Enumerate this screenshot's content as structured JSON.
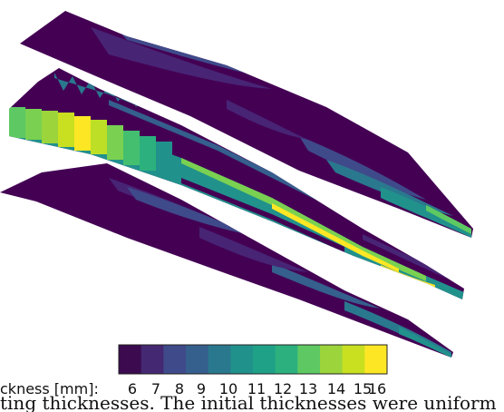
{
  "colorbar": {
    "label": "ckness [mm]:",
    "ticks": [
      "6",
      "7",
      "8",
      "9",
      "10",
      "11",
      "12",
      "13",
      "14",
      "15",
      "16"
    ],
    "colors": [
      "#3b0a4f",
      "#452872",
      "#3f4a8a",
      "#355f8d",
      "#2a788e",
      "#21918c",
      "#1fa187",
      "#2cb17e",
      "#5ec962",
      "#9bd43b",
      "#c8e020",
      "#fde725"
    ]
  },
  "panels": [
    {
      "name": "top-blade",
      "dominant_color": "#440154"
    },
    {
      "name": "middle-blade",
      "dominant_color": "#440154"
    },
    {
      "name": "bottom-blade",
      "dominant_color": "#440154"
    }
  ],
  "caption_fragment": "ting thicknesses. The initial thicknesses were uniform"
}
